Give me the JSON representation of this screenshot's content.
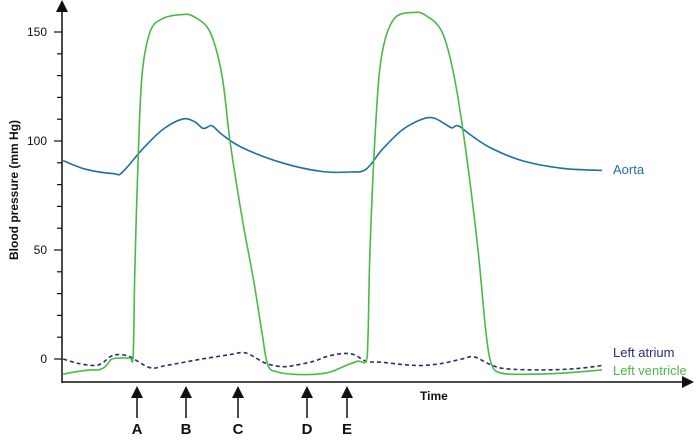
{
  "chart_data": {
    "type": "line",
    "title": "",
    "xlabel": "Time",
    "ylabel": "Blood pressure (mm Hg)",
    "ylim": [
      -8,
      162
    ],
    "yticks": [
      0,
      50,
      100,
      150
    ],
    "grid": false,
    "legend": "inline labels at right end of each curve",
    "colors": {
      "Aorta": "#1f6fa5",
      "Left atrium": "#2b2a7a",
      "Left ventricle": "#4cb848"
    },
    "series": [
      {
        "name": "Aorta",
        "style": "solid",
        "points": [
          [
            0.3,
            91
          ],
          [
            6,
            87
          ],
          [
            13,
            85
          ],
          [
            15,
            85.5
          ],
          [
            20,
            96
          ],
          [
            25,
            105
          ],
          [
            30,
            110
          ],
          [
            33,
            109
          ],
          [
            35,
            106
          ],
          [
            36,
            106
          ],
          [
            37.5,
            107
          ],
          [
            40,
            103
          ],
          [
            45,
            97
          ],
          [
            55,
            90
          ],
          [
            65,
            86
          ],
          [
            72,
            85.8
          ],
          [
            76,
            87
          ],
          [
            80,
            96
          ],
          [
            85,
            105
          ],
          [
            90,
            110
          ],
          [
            93,
            110.5
          ],
          [
            96,
            107.5
          ],
          [
            97.5,
            106
          ],
          [
            99,
            107
          ],
          [
            102,
            103
          ],
          [
            107,
            97
          ],
          [
            115,
            91
          ],
          [
            125,
            87.5
          ],
          [
            135,
            86.5
          ]
        ]
      },
      {
        "name": "Left atrium",
        "style": "dashed",
        "points": [
          [
            0.3,
            0
          ],
          [
            4,
            -2
          ],
          [
            8,
            -3
          ],
          [
            10,
            -2
          ],
          [
            12,
            1
          ],
          [
            14,
            2
          ],
          [
            17,
            1
          ],
          [
            22,
            -4
          ],
          [
            26,
            -3
          ],
          [
            35,
            0
          ],
          [
            42,
            2
          ],
          [
            45,
            3
          ],
          [
            47,
            2
          ],
          [
            51,
            -2
          ],
          [
            55,
            -3.5
          ],
          [
            58,
            -3
          ],
          [
            63,
            -1
          ],
          [
            66,
            1
          ],
          [
            70,
            2.5
          ],
          [
            73,
            2
          ],
          [
            76,
            -1
          ],
          [
            80,
            -1.5
          ],
          [
            85,
            -2.5
          ],
          [
            90,
            -3
          ],
          [
            95,
            -2
          ],
          [
            100,
            0
          ],
          [
            103,
            1
          ],
          [
            107,
            -2.5
          ],
          [
            111,
            -4.5
          ],
          [
            120,
            -5
          ],
          [
            128,
            -4.5
          ],
          [
            135,
            -3
          ]
        ]
      },
      {
        "name": "Left ventricle",
        "style": "solid",
        "points": [
          [
            0.3,
            -7
          ],
          [
            3,
            -6
          ],
          [
            7,
            -5
          ],
          [
            9,
            -5
          ],
          [
            10.5,
            -4
          ],
          [
            11.5,
            -2
          ],
          [
            12.5,
            0
          ],
          [
            15,
            0.5
          ],
          [
            17,
            0.5
          ],
          [
            17.8,
            2
          ],
          [
            18.2,
            40
          ],
          [
            19,
            90
          ],
          [
            20,
            130
          ],
          [
            22,
            150
          ],
          [
            25,
            156
          ],
          [
            30,
            158
          ],
          [
            33,
            157
          ],
          [
            37,
            150
          ],
          [
            40,
            130
          ],
          [
            42,
            100
          ],
          [
            45,
            65
          ],
          [
            48,
            35
          ],
          [
            50,
            12
          ],
          [
            51.5,
            -3
          ],
          [
            54,
            -6
          ],
          [
            58,
            -7
          ],
          [
            63,
            -7
          ],
          [
            67,
            -6
          ],
          [
            71,
            -3
          ],
          [
            74,
            -1
          ],
          [
            76,
            -1
          ],
          [
            76.5,
            10
          ],
          [
            77,
            50
          ],
          [
            78.5,
            110
          ],
          [
            80,
            140
          ],
          [
            83,
            156
          ],
          [
            88,
            159
          ],
          [
            91,
            157.5
          ],
          [
            95,
            150
          ],
          [
            98,
            130
          ],
          [
            101,
            95
          ],
          [
            104,
            50
          ],
          [
            106,
            12
          ],
          [
            107.5,
            -3
          ],
          [
            110,
            -6.5
          ],
          [
            115,
            -7
          ],
          [
            125,
            -6.5
          ],
          [
            135,
            -5
          ]
        ]
      }
    ],
    "series_labels": [
      "Aorta",
      "Left atrium",
      "Left ventricle"
    ],
    "markers": [
      "A",
      "B",
      "C",
      "D",
      "E"
    ]
  }
}
